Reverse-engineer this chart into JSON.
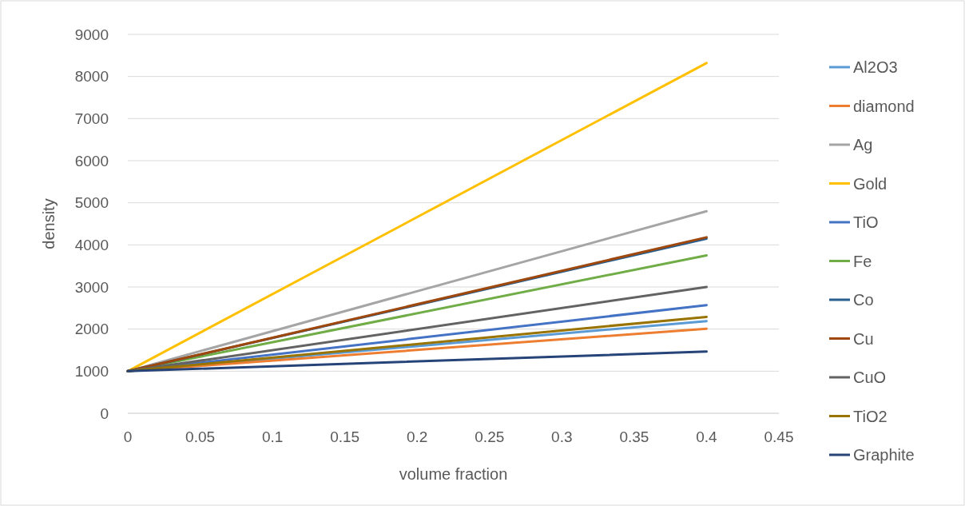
{
  "chart_data": {
    "type": "line",
    "xlabel": "volume fraction",
    "ylabel": "density",
    "x": [
      0,
      0.4
    ],
    "xlim": [
      0,
      0.45
    ],
    "xticks": [
      0,
      0.05,
      0.1,
      0.15,
      0.2,
      0.25,
      0.3,
      0.35,
      0.4,
      0.45
    ],
    "ylim": [
      0,
      9000
    ],
    "yticks": [
      0,
      1000,
      2000,
      3000,
      4000,
      5000,
      6000,
      7000,
      8000,
      9000
    ],
    "grid": "y",
    "legend": "right",
    "marker": "none",
    "line_style": "solid",
    "series": [
      {
        "name": "Al2O3",
        "color": "#5b9bd5",
        "values": [
          1000,
          2190
        ]
      },
      {
        "name": "diamond",
        "color": "#ed7d31",
        "values": [
          1000,
          2010
        ]
      },
      {
        "name": "Ag",
        "color": "#a5a5a5",
        "values": [
          1000,
          4800
        ]
      },
      {
        "name": "Gold",
        "color": "#ffc000",
        "values": [
          1000,
          8320
        ]
      },
      {
        "name": "TiO",
        "color": "#4472c4",
        "values": [
          1000,
          2570
        ]
      },
      {
        "name": "Fe",
        "color": "#70ad47",
        "values": [
          1000,
          3750
        ]
      },
      {
        "name": "Co",
        "color": "#255e91",
        "values": [
          1000,
          4150
        ]
      },
      {
        "name": "Cu",
        "color": "#9e480e",
        "values": [
          1000,
          4180
        ]
      },
      {
        "name": "CuO",
        "color": "#636363",
        "values": [
          1000,
          3000
        ]
      },
      {
        "name": "TiO2",
        "color": "#997300",
        "values": [
          1000,
          2290
        ]
      },
      {
        "name": "Graphite",
        "color": "#264478",
        "values": [
          1000,
          1465
        ]
      }
    ]
  }
}
